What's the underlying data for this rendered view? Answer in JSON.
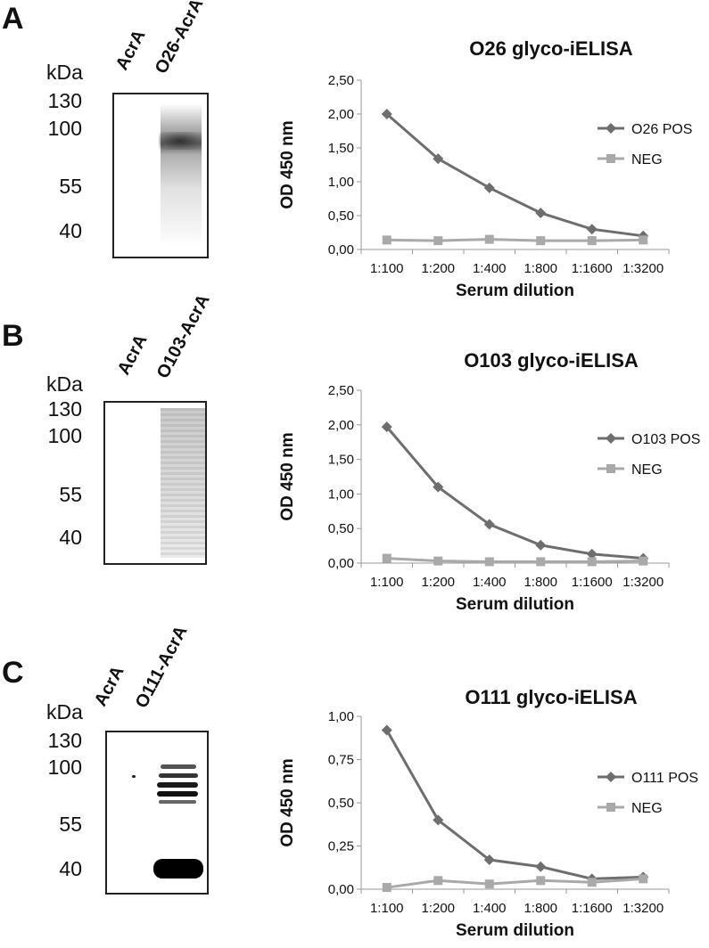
{
  "panels": [
    {
      "letter": "A",
      "blot": {
        "lanes": [
          "AcrA",
          "O26-AcrA"
        ],
        "unit": "kDa",
        "markers": [
          "130",
          "100",
          "55",
          "40"
        ]
      },
      "chart_title": "O26 glyco-iELISA",
      "legend": [
        "O26 POS",
        "NEG"
      ]
    },
    {
      "letter": "B",
      "blot": {
        "lanes": [
          "AcrA",
          "O103-AcrA"
        ],
        "unit": "kDa",
        "markers": [
          "130",
          "100",
          "55",
          "40"
        ]
      },
      "chart_title": "O103 glyco-iELISA",
      "legend": [
        "O103 POS",
        "NEG"
      ]
    },
    {
      "letter": "C",
      "blot": {
        "lanes": [
          "AcrA",
          "O111-AcrA"
        ],
        "unit": "kDa",
        "markers": [
          "130",
          "100",
          "55",
          "40"
        ]
      },
      "chart_title": "O111 glyco-iELISA",
      "legend": [
        "O111 POS",
        "NEG"
      ]
    }
  ],
  "chart_data": [
    {
      "type": "line",
      "title": "O26 glyco-iELISA",
      "xlabel": "Serum dilution",
      "ylabel": "OD 450 nm",
      "categories": [
        "1:100",
        "1:200",
        "1:400",
        "1:800",
        "1:1600",
        "1:3200"
      ],
      "ylim": [
        0,
        2.5
      ],
      "yticks": [
        "0,00",
        "0,50",
        "1,00",
        "1,50",
        "2,00",
        "2,50"
      ],
      "yticks_values": [
        0,
        0.5,
        1.0,
        1.5,
        2.0,
        2.5
      ],
      "series": [
        {
          "name": "O26 POS",
          "marker": "diamond",
          "color": "#6e6e6e",
          "values": [
            2.0,
            1.34,
            0.91,
            0.54,
            0.3,
            0.2
          ]
        },
        {
          "name": "NEG",
          "marker": "square",
          "color": "#a9a9a9",
          "values": [
            0.14,
            0.13,
            0.15,
            0.13,
            0.13,
            0.14
          ]
        }
      ]
    },
    {
      "type": "line",
      "title": "O103 glyco-iELISA",
      "xlabel": "Serum dilution",
      "ylabel": "OD 450 nm",
      "categories": [
        "1:100",
        "1:200",
        "1:400",
        "1:800",
        "1:1600",
        "1:3200"
      ],
      "ylim": [
        0,
        2.5
      ],
      "yticks": [
        "0,00",
        "0,50",
        "1,00",
        "1,50",
        "2,00",
        "2,50"
      ],
      "yticks_values": [
        0,
        0.5,
        1.0,
        1.5,
        2.0,
        2.5
      ],
      "series": [
        {
          "name": "O103 POS",
          "marker": "diamond",
          "color": "#6e6e6e",
          "values": [
            1.97,
            1.1,
            0.56,
            0.26,
            0.13,
            0.07
          ]
        },
        {
          "name": "NEG",
          "marker": "square",
          "color": "#a9a9a9",
          "values": [
            0.07,
            0.03,
            0.02,
            0.02,
            0.02,
            0.03
          ]
        }
      ]
    },
    {
      "type": "line",
      "title": "O111 glyco-iELISA",
      "xlabel": "Serum dilution",
      "ylabel": "OD 450 nm",
      "categories": [
        "1:100",
        "1:200",
        "1:400",
        "1:800",
        "1:1600",
        "1:3200"
      ],
      "ylim": [
        0,
        1.0
      ],
      "yticks": [
        "0,00",
        "0,25",
        "0,50",
        "0,75",
        "1,00"
      ],
      "yticks_values": [
        0,
        0.25,
        0.5,
        0.75,
        1.0
      ],
      "series": [
        {
          "name": "O111 POS",
          "marker": "diamond",
          "color": "#6e6e6e",
          "values": [
            0.92,
            0.4,
            0.17,
            0.13,
            0.06,
            0.07
          ]
        },
        {
          "name": "NEG",
          "marker": "square",
          "color": "#a9a9a9",
          "values": [
            0.01,
            0.05,
            0.03,
            0.05,
            0.04,
            0.06
          ]
        }
      ]
    }
  ]
}
